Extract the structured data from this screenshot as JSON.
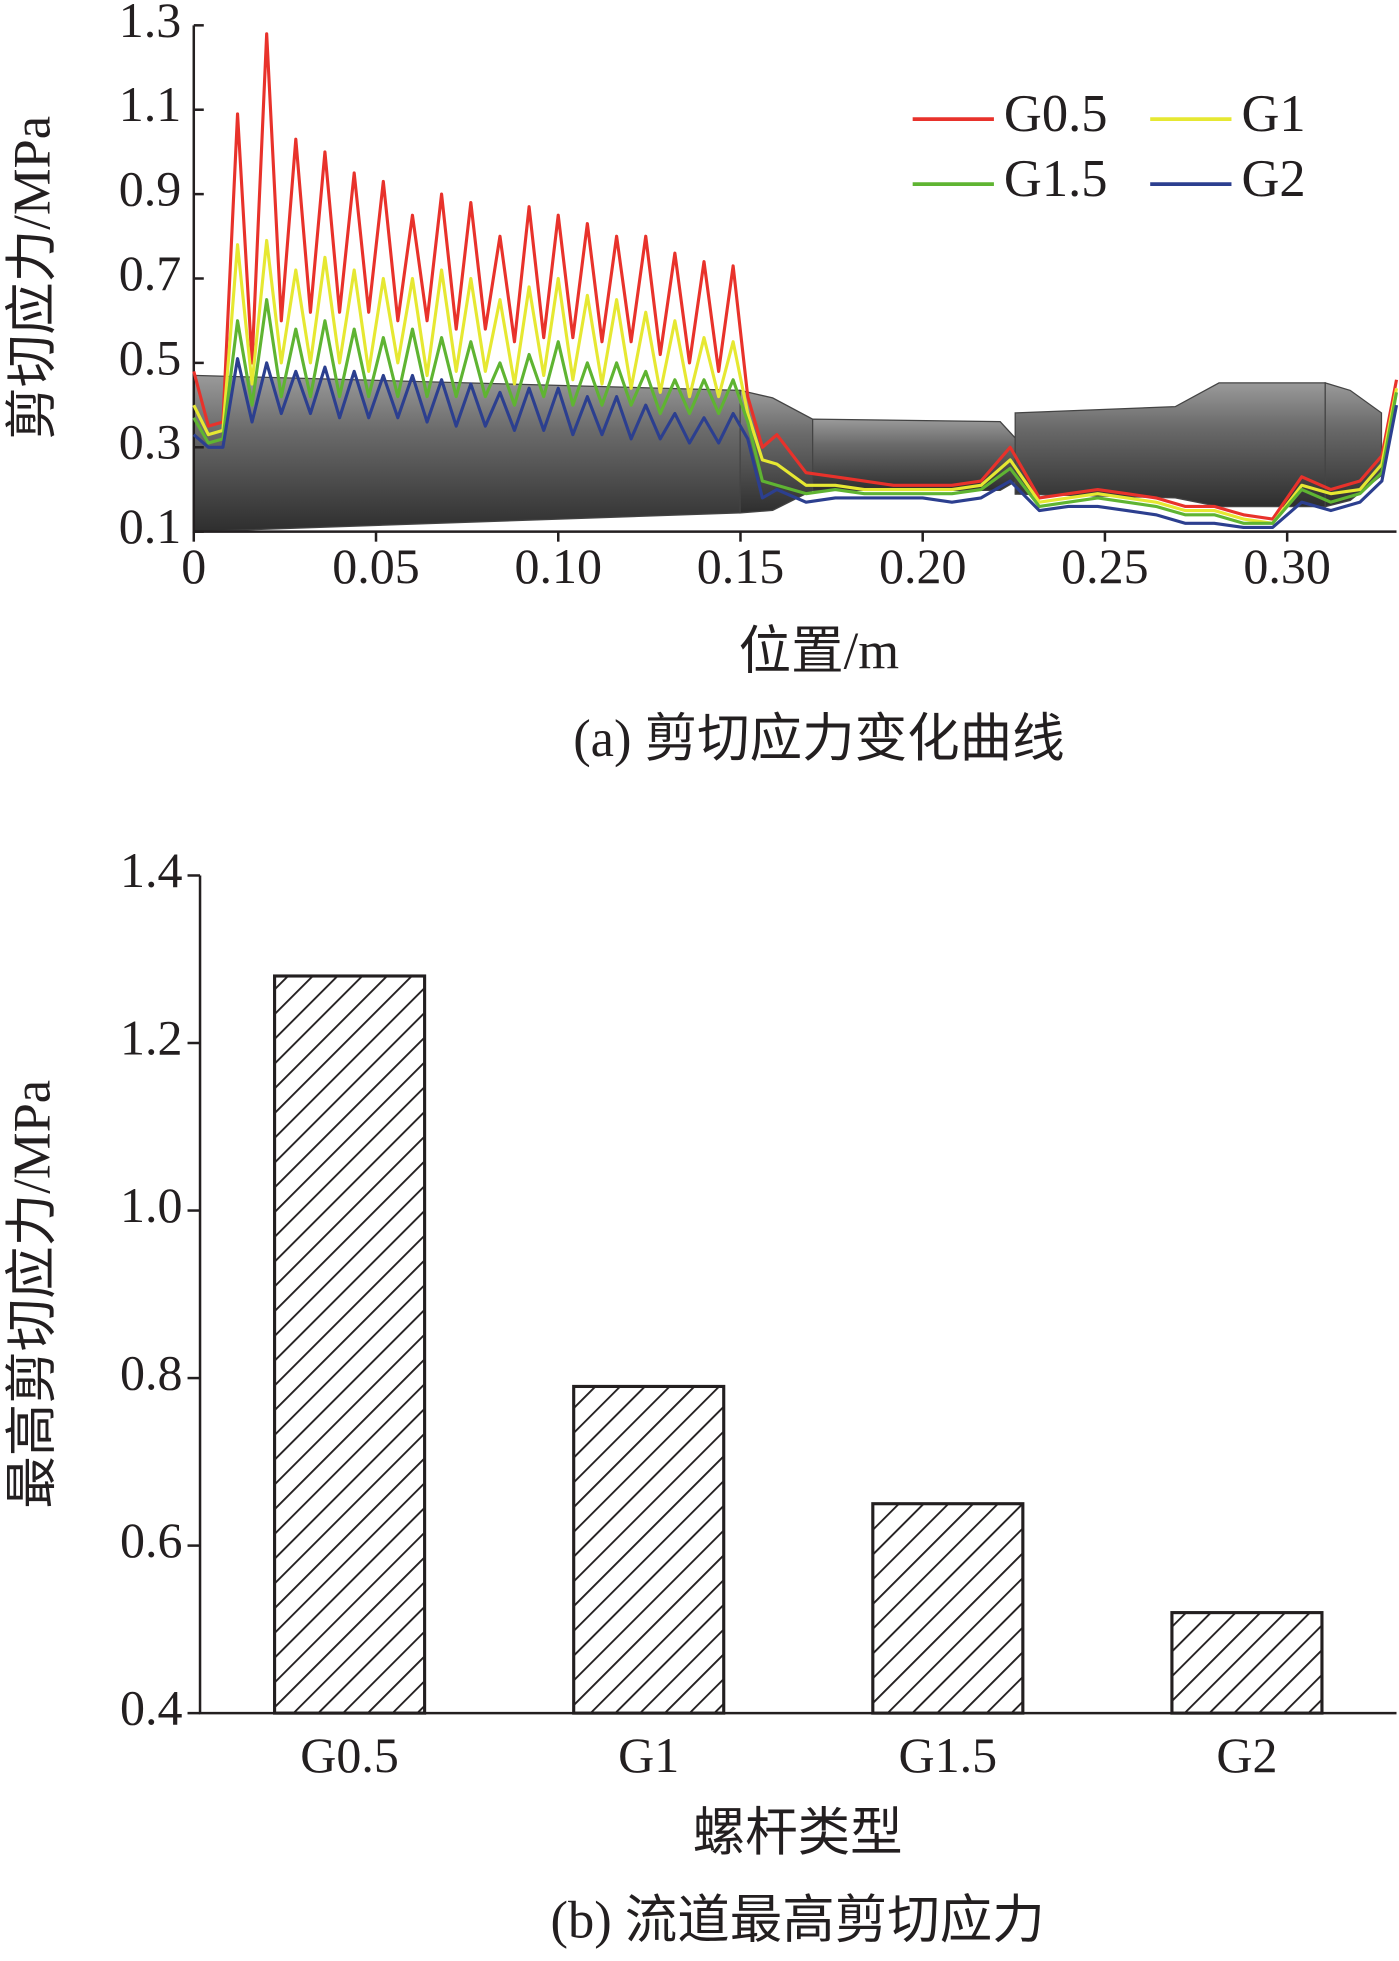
{
  "chart_data": [
    {
      "type": "line",
      "x_label": "位置/m",
      "y_label": "剪切应力/MPa",
      "caption": "(a) 剪切应力变化曲线",
      "xlim": [
        0,
        0.33
      ],
      "ylim": [
        0.1,
        1.3
      ],
      "xticks": [
        0,
        0.05,
        {
          "value": 0.1,
          "label": "0.10"
        },
        0.15,
        {
          "value": 0.2,
          "label": "0.20"
        },
        0.25,
        {
          "value": 0.3,
          "label": "0.30"
        }
      ],
      "yticks": [
        0.1,
        0.3,
        0.5,
        0.7,
        0.9,
        1.1,
        1.3
      ],
      "x": [
        0,
        0.004,
        0.008,
        0.012,
        0.016,
        0.02,
        0.024,
        0.028,
        0.032,
        0.036,
        0.04,
        0.044,
        0.048,
        0.052,
        0.056,
        0.06,
        0.064,
        0.068,
        0.072,
        0.076,
        0.08,
        0.084,
        0.088,
        0.092,
        0.096,
        0.1,
        0.104,
        0.108,
        0.112,
        0.116,
        0.12,
        0.124,
        0.128,
        0.132,
        0.136,
        0.14,
        0.144,
        0.148,
        0.152,
        0.156,
        0.16,
        0.168,
        0.176,
        0.184,
        0.192,
        0.2,
        0.208,
        0.216,
        0.224,
        0.232,
        0.24,
        0.248,
        0.256,
        0.264,
        0.272,
        0.28,
        0.288,
        0.296,
        0.304,
        0.312,
        0.32,
        0.326,
        0.33
      ],
      "series": [
        {
          "name": "G0.5",
          "color": "#e8322b",
          "values": [
            0.48,
            0.35,
            0.36,
            1.09,
            0.5,
            1.28,
            0.6,
            1.03,
            0.62,
            1.0,
            0.62,
            0.95,
            0.62,
            0.93,
            0.6,
            0.85,
            0.6,
            0.9,
            0.58,
            0.88,
            0.58,
            0.8,
            0.55,
            0.87,
            0.56,
            0.85,
            0.56,
            0.83,
            0.55,
            0.8,
            0.55,
            0.8,
            0.52,
            0.76,
            0.5,
            0.74,
            0.48,
            0.73,
            0.42,
            0.3,
            0.33,
            0.24,
            0.23,
            0.22,
            0.21,
            0.21,
            0.21,
            0.22,
            0.3,
            0.18,
            0.19,
            0.2,
            0.19,
            0.18,
            0.16,
            0.16,
            0.14,
            0.13,
            0.23,
            0.2,
            0.22,
            0.28,
            0.46
          ]
        },
        {
          "name": "G1",
          "color": "#e6e832",
          "values": [
            0.4,
            0.33,
            0.34,
            0.78,
            0.45,
            0.79,
            0.5,
            0.72,
            0.5,
            0.75,
            0.5,
            0.72,
            0.48,
            0.7,
            0.5,
            0.7,
            0.47,
            0.72,
            0.48,
            0.7,
            0.48,
            0.65,
            0.45,
            0.68,
            0.47,
            0.7,
            0.46,
            0.66,
            0.45,
            0.65,
            0.44,
            0.62,
            0.43,
            0.6,
            0.42,
            0.56,
            0.42,
            0.55,
            0.38,
            0.27,
            0.26,
            0.21,
            0.21,
            0.2,
            0.2,
            0.2,
            0.2,
            0.21,
            0.27,
            0.17,
            0.18,
            0.19,
            0.18,
            0.17,
            0.15,
            0.15,
            0.13,
            0.12,
            0.21,
            0.19,
            0.2,
            0.26,
            0.44
          ]
        },
        {
          "name": "G1.5",
          "color": "#5fb432",
          "values": [
            0.37,
            0.31,
            0.32,
            0.6,
            0.4,
            0.65,
            0.42,
            0.58,
            0.42,
            0.6,
            0.42,
            0.58,
            0.42,
            0.56,
            0.42,
            0.58,
            0.42,
            0.56,
            0.42,
            0.55,
            0.42,
            0.5,
            0.4,
            0.52,
            0.42,
            0.55,
            0.4,
            0.5,
            0.4,
            0.5,
            0.4,
            0.48,
            0.38,
            0.46,
            0.38,
            0.46,
            0.38,
            0.46,
            0.36,
            0.22,
            0.21,
            0.19,
            0.2,
            0.19,
            0.19,
            0.19,
            0.19,
            0.2,
            0.25,
            0.16,
            0.17,
            0.18,
            0.17,
            0.16,
            0.14,
            0.14,
            0.12,
            0.12,
            0.2,
            0.17,
            0.19,
            0.24,
            0.43
          ]
        },
        {
          "name": "G2",
          "color": "#2c3f8f",
          "values": [
            0.33,
            0.3,
            0.3,
            0.51,
            0.36,
            0.5,
            0.38,
            0.48,
            0.38,
            0.49,
            0.37,
            0.48,
            0.37,
            0.47,
            0.37,
            0.47,
            0.36,
            0.46,
            0.35,
            0.45,
            0.35,
            0.43,
            0.34,
            0.44,
            0.34,
            0.44,
            0.33,
            0.42,
            0.33,
            0.42,
            0.32,
            0.4,
            0.32,
            0.38,
            0.31,
            0.37,
            0.31,
            0.38,
            0.32,
            0.18,
            0.2,
            0.17,
            0.18,
            0.18,
            0.18,
            0.18,
            0.17,
            0.18,
            0.22,
            0.15,
            0.16,
            0.16,
            0.15,
            0.14,
            0.12,
            0.12,
            0.11,
            0.11,
            0.17,
            0.15,
            0.17,
            0.22,
            0.4
          ]
        }
      ]
    },
    {
      "type": "bar",
      "x_label": "螺杆类型",
      "y_label": "最高剪切应力/MPa",
      "caption": "(b) 流道最高剪切应力",
      "categories": [
        "G0.5",
        "G1",
        "G1.5",
        "G2"
      ],
      "values": [
        1.28,
        0.79,
        0.65,
        0.52
      ],
      "ylim": [
        0.4,
        1.4
      ],
      "yticks": [
        0.4,
        0.6,
        0.8,
        {
          "value": 1.0,
          "label": "1.0"
        },
        1.2,
        1.4
      ],
      "fill": "hatch"
    }
  ]
}
